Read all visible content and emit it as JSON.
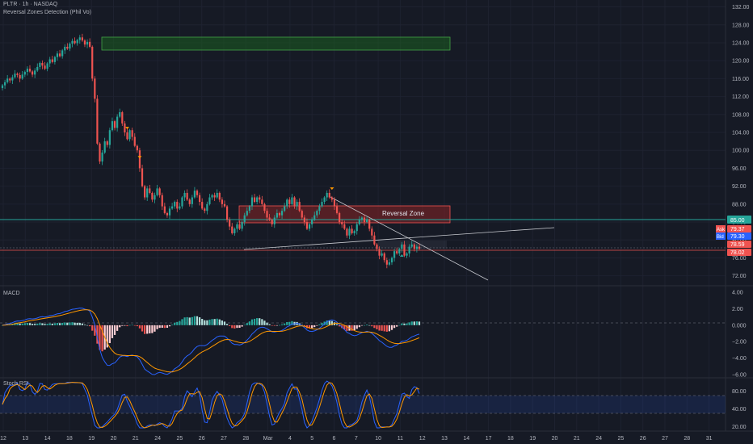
{
  "header": {
    "symbol_line": "PLTR · 1h · NASDAQ",
    "indicator": "Reversal Zones Detection (Phil Vo)"
  },
  "panes": {
    "macd_label": "MACD",
    "rsi_label": "Stoch RSI"
  },
  "annotations": {
    "reversal_zone": "Reversal Zone"
  },
  "price_tags": {
    "level_85": "85.00",
    "ask_label": "Ask",
    "ask_value": "79.37",
    "bid_label": "Bid",
    "bid_value": "79.30",
    "last_high": "78.59",
    "last_close": "78.02"
  },
  "colors": {
    "background": "#161a25",
    "grid": "#1e2230",
    "up": "#26a69a",
    "down": "#ef5350",
    "zone_green": "#1b5e20",
    "zone_red": "#7f2327",
    "level_line": "#26a69a",
    "macd_line": "#2962ff",
    "signal_line": "#ff9800",
    "rsi_k": "#2962ff",
    "rsi_d": "#ff9800"
  },
  "chart_data": [
    {
      "type": "candlestick",
      "name": "price",
      "y_ticks": [
        132,
        128,
        124,
        120,
        116,
        112,
        108,
        104,
        100,
        96,
        92,
        88,
        84,
        80,
        76,
        72
      ],
      "y_tick_labels": [
        "132.00",
        "128.00",
        "124.00",
        "120.00",
        "116.00",
        "112.00",
        "108.00",
        "104.00",
        "100.00",
        "96.00",
        "92.00",
        "88.00",
        "84.00",
        "80.00",
        "76.00",
        "72.00"
      ],
      "ylim": [
        70.5,
        133
      ],
      "x_ticks": [
        "12",
        "13",
        "14",
        "18",
        "19",
        "20",
        "21",
        "24",
        "25",
        "26",
        "27",
        "28",
        "Mar",
        "4",
        "5",
        "6",
        "7",
        "10",
        "11",
        "12",
        "13",
        "14",
        "17",
        "18",
        "19",
        "20",
        "21",
        "24",
        "25",
        "26",
        "27",
        "28",
        "31"
      ],
      "closes": [
        114.5,
        115.2,
        116.0,
        115.6,
        116.3,
        117.1,
        116.8,
        116.0,
        116.9,
        117.5,
        118.2,
        117.6,
        116.9,
        117.8,
        118.6,
        119.5,
        118.9,
        118.2,
        119.4,
        120.3,
        119.7,
        120.8,
        121.6,
        121.0,
        122.3,
        123.1,
        122.7,
        123.8,
        124.4,
        123.9,
        124.6,
        125.2,
        124.5,
        123.6,
        124.2,
        123.1,
        116.0,
        111.5,
        101.5,
        97.5,
        99.5,
        102.0,
        101.2,
        104.5,
        106.5,
        105.0,
        107.5,
        108.5,
        106.0,
        104.0,
        102.5,
        104.5,
        103.0,
        101.0,
        100.0,
        96.0,
        92.0,
        89.5,
        91.5,
        90.5,
        89.0,
        90.0,
        91.5,
        90.0,
        87.5,
        86.0,
        85.5,
        87.0,
        87.5,
        88.5,
        87.0,
        87.5,
        89.5,
        90.5,
        89.0,
        88.0,
        89.5,
        91.0,
        90.0,
        88.5,
        87.0,
        86.5,
        88.0,
        89.5,
        90.0,
        89.5,
        90.5,
        89.0,
        88.0,
        87.5,
        84.5,
        83.0,
        81.5,
        82.5,
        83.5,
        82.5,
        84.0,
        85.5,
        86.5,
        87.5,
        89.5,
        88.5,
        89.5,
        89.0,
        88.0,
        86.5,
        85.0,
        84.5,
        83.5,
        85.0,
        86.0,
        85.5,
        86.5,
        87.5,
        89.0,
        88.0,
        89.5,
        87.5,
        88.5,
        86.5,
        85.0,
        84.0,
        82.5,
        83.5,
        84.5,
        85.5,
        86.5,
        87.5,
        88.5,
        89.5,
        90.5,
        89.5,
        89.0,
        87.5,
        86.0,
        84.0,
        83.5,
        82.5,
        81.0,
        82.5,
        81.5,
        82.0,
        83.5,
        84.5,
        85.0,
        84.0,
        84.5,
        82.5,
        81.0,
        79.0,
        78.0,
        76.5,
        77.0,
        75.5,
        74.5,
        75.0,
        76.0,
        77.5,
        77.0,
        78.0,
        79.0,
        76.5,
        77.0,
        78.5,
        79.0,
        78.0,
        78.5,
        78.02
      ]
    },
    {
      "type": "histogram+line",
      "name": "MACD",
      "y_tick_labels": [
        "4.00",
        "2.00",
        "0.000",
        "−2.00",
        "−4.00",
        "−6.00"
      ],
      "ylim": [
        -6.2,
        4.6
      ]
    },
    {
      "type": "line",
      "name": "Stoch RSI",
      "y_tick_labels": [
        "80.00",
        "40.00",
        "20.00"
      ],
      "ylim": [
        0,
        100
      ],
      "bands": [
        20,
        80
      ]
    }
  ]
}
